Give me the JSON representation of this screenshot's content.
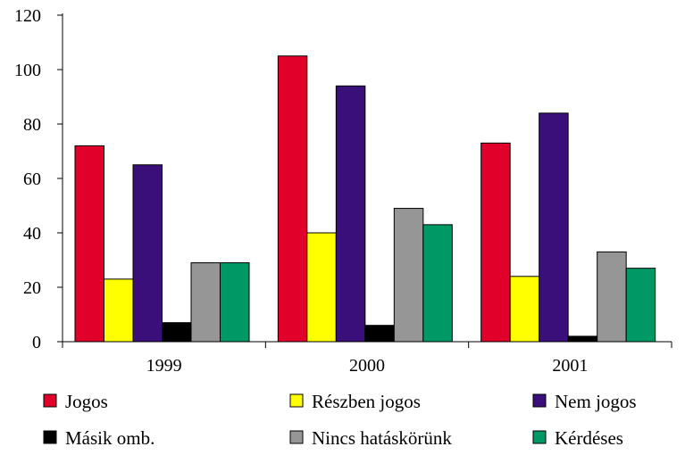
{
  "chart_data": {
    "type": "bar",
    "categories": [
      "1999",
      "2000",
      "2001"
    ],
    "series": [
      {
        "name": "Jogos",
        "color": "#e0002a",
        "values": [
          72,
          105,
          73
        ]
      },
      {
        "name": "Részben jogos",
        "color": "#ffff00",
        "values": [
          23,
          40,
          24
        ]
      },
      {
        "name": "Nem jogos",
        "color": "#3a0f7a",
        "values": [
          65,
          94,
          84
        ]
      },
      {
        "name": "Másik omb.",
        "color": "#000000",
        "values": [
          7,
          6,
          2
        ]
      },
      {
        "name": "Nincs hatáskörünk",
        "color": "#969696",
        "values": [
          29,
          49,
          33
        ]
      },
      {
        "name": "Kérdéses",
        "color": "#009966",
        "values": [
          29,
          43,
          27
        ]
      }
    ],
    "y_ticks": [
      "0",
      "20",
      "40",
      "60",
      "80",
      "100",
      "120"
    ],
    "ylim": [
      0,
      120
    ],
    "grid": false,
    "legend_position": "bottom"
  }
}
